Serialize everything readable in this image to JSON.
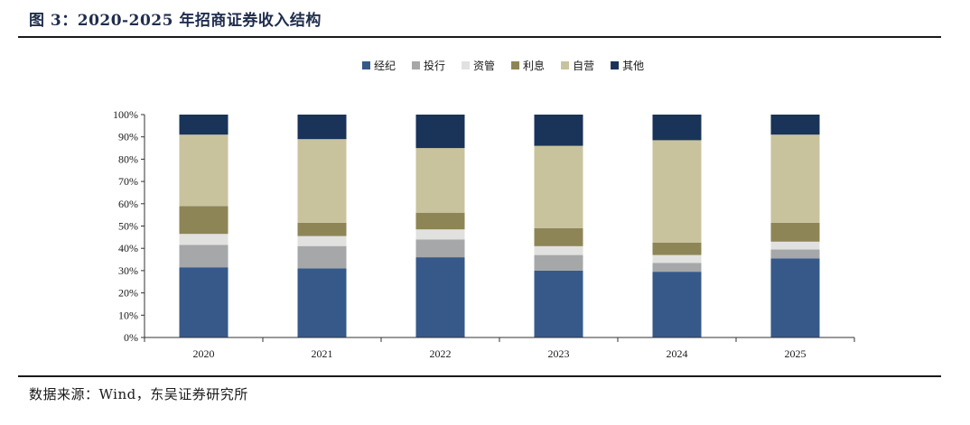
{
  "figure": {
    "title": "图 3：2020-2025 年招商证券收入结构",
    "source": "数据来源：Wind，东吴证券研究所"
  },
  "chart_data": {
    "type": "bar",
    "stacked": true,
    "percent": true,
    "categories": [
      "2020",
      "2021",
      "2022",
      "2023",
      "2024",
      "2025"
    ],
    "series": [
      {
        "name": "经纪",
        "color": "#36598a",
        "values": [
          31.5,
          31.0,
          36.0,
          30.0,
          29.5,
          35.5
        ]
      },
      {
        "name": "投行",
        "color": "#a6a7a9",
        "values": [
          10.0,
          10.0,
          8.0,
          7.0,
          4.0,
          4.0
        ]
      },
      {
        "name": "资管",
        "color": "#e1e1df",
        "values": [
          5.0,
          4.5,
          4.5,
          4.0,
          3.5,
          3.5
        ]
      },
      {
        "name": "利息",
        "color": "#8d8555",
        "values": [
          12.5,
          6.0,
          7.5,
          8.0,
          5.5,
          8.5
        ]
      },
      {
        "name": "自营",
        "color": "#c8c39d",
        "values": [
          32.0,
          37.5,
          29.0,
          37.0,
          46.0,
          39.5
        ]
      },
      {
        "name": "其他",
        "color": "#1a3358",
        "values": [
          9.0,
          11.0,
          15.0,
          14.0,
          11.5,
          9.0
        ]
      }
    ],
    "ylim": [
      0,
      100
    ],
    "yticks": [
      "0%",
      "10%",
      "20%",
      "30%",
      "40%",
      "50%",
      "60%",
      "70%",
      "80%",
      "90%",
      "100%"
    ],
    "legend_position": "top-center",
    "grid": false
  }
}
